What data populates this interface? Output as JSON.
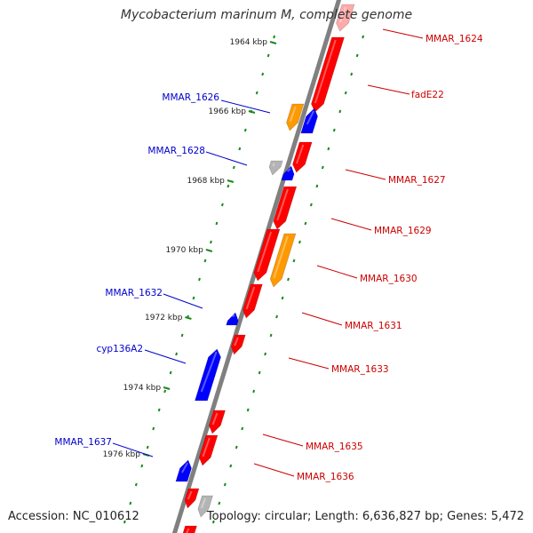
{
  "title": "Mycobacterium marinum M, complete genome",
  "footer": {
    "accession": "Accession: NC_010612",
    "info": "Topology: circular; Length: 6,636,827 bp; Genes: 5,472"
  },
  "colors": {
    "forward": "#ff0000",
    "reverse": "#0000ff",
    "orange": "#ff9900",
    "gray": "#b4b4b4",
    "pink": "#ffaaaa",
    "tick": "#1a8a1a",
    "backbone": "#808080",
    "label_forward": "#cc0000",
    "label_reverse": "#0000cc"
  },
  "kbp_ticks": [
    {
      "label": "1964 kbp"
    },
    {
      "label": "1966 kbp"
    },
    {
      "label": "1968 kbp"
    },
    {
      "label": "1970 kbp"
    },
    {
      "label": "1972 kbp"
    },
    {
      "label": "1974 kbp"
    },
    {
      "label": "1976 kbp"
    }
  ],
  "gene_labels": [
    {
      "name": "MMAR_1624",
      "strand": "forward"
    },
    {
      "name": "fadE22",
      "strand": "forward"
    },
    {
      "name": "MMAR_1626",
      "strand": "reverse"
    },
    {
      "name": "MMAR_1628",
      "strand": "reverse"
    },
    {
      "name": "MMAR_1627",
      "strand": "forward"
    },
    {
      "name": "MMAR_1629",
      "strand": "forward"
    },
    {
      "name": "MMAR_1630",
      "strand": "forward"
    },
    {
      "name": "MMAR_1632",
      "strand": "reverse"
    },
    {
      "name": "MMAR_1631",
      "strand": "forward"
    },
    {
      "name": "cyp136A2",
      "strand": "reverse"
    },
    {
      "name": "MMAR_1633",
      "strand": "forward"
    },
    {
      "name": "MMAR_1637",
      "strand": "reverse"
    },
    {
      "name": "MMAR_1635",
      "strand": "forward"
    },
    {
      "name": "MMAR_1636",
      "strand": "forward"
    }
  ]
}
